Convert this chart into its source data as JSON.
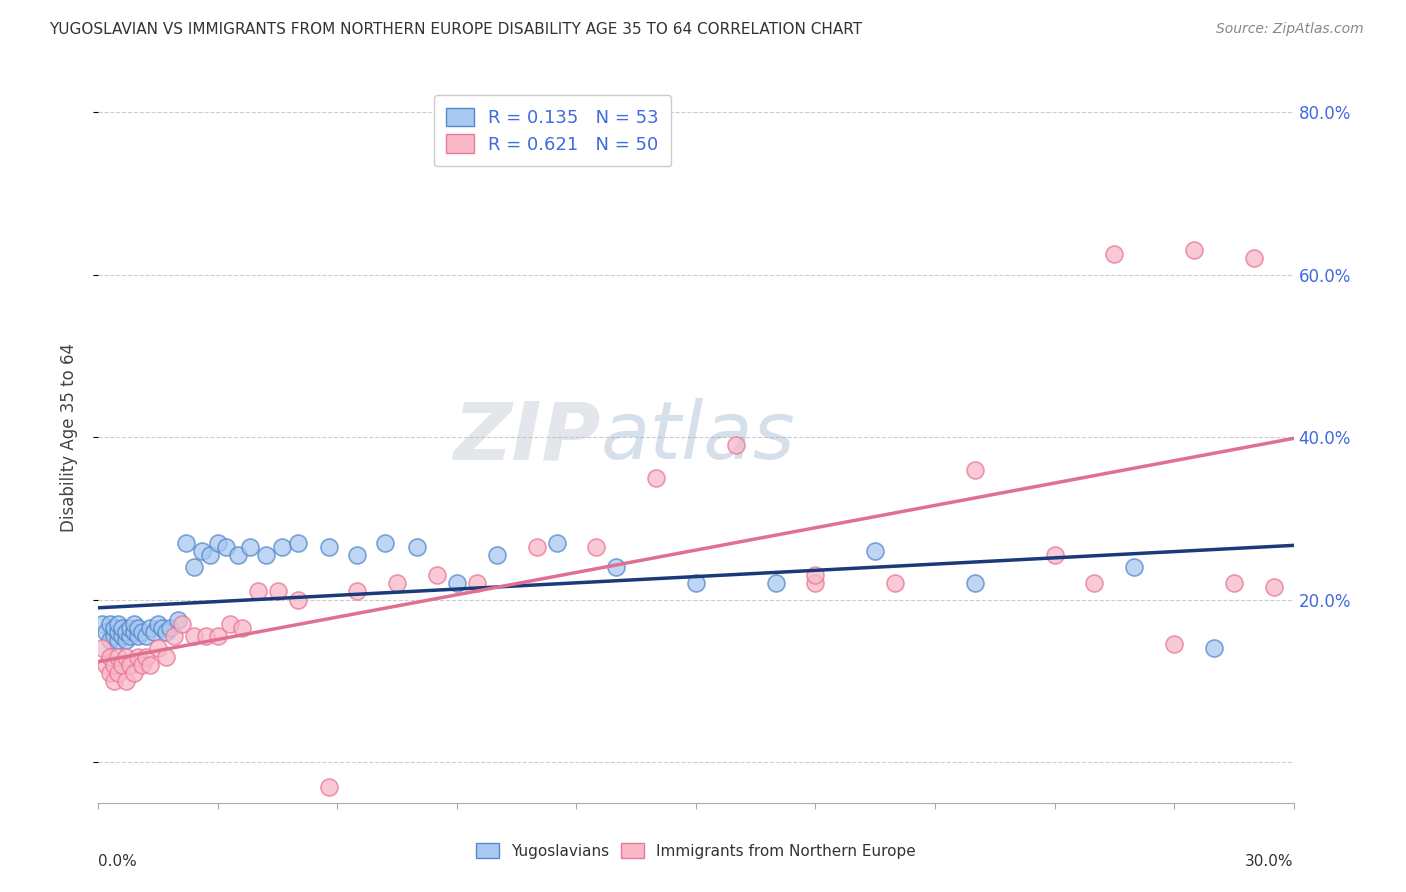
{
  "title": "YUGOSLAVIAN VS IMMIGRANTS FROM NORTHERN EUROPE DISABILITY AGE 35 TO 64 CORRELATION CHART",
  "source": "Source: ZipAtlas.com",
  "ylabel": "Disability Age 35 to 64",
  "xmin": 0.0,
  "xmax": 0.3,
  "ymin": -0.05,
  "ymax": 0.85,
  "ytick_vals": [
    0.0,
    0.2,
    0.4,
    0.6,
    0.8
  ],
  "ytick_labels": [
    "",
    "20.0%",
    "40.0%",
    "60.0%",
    "80.0%"
  ],
  "r_blue": 0.135,
  "n_blue": 53,
  "r_pink": 0.621,
  "n_pink": 50,
  "blue_fill": "#A8C8F0",
  "blue_edge": "#5588CC",
  "pink_fill": "#F8B8C8",
  "pink_edge": "#E87898",
  "blue_line_color": "#1A3A7A",
  "pink_line_color": "#E07090",
  "blue_scatter_x": [
    0.001,
    0.002,
    0.003,
    0.003,
    0.004,
    0.004,
    0.005,
    0.005,
    0.005,
    0.006,
    0.006,
    0.007,
    0.007,
    0.008,
    0.008,
    0.009,
    0.009,
    0.01,
    0.01,
    0.011,
    0.012,
    0.013,
    0.014,
    0.015,
    0.016,
    0.017,
    0.018,
    0.02,
    0.022,
    0.024,
    0.026,
    0.028,
    0.03,
    0.032,
    0.035,
    0.038,
    0.042,
    0.046,
    0.05,
    0.058,
    0.065,
    0.072,
    0.08,
    0.09,
    0.1,
    0.115,
    0.13,
    0.15,
    0.17,
    0.195,
    0.22,
    0.26,
    0.28
  ],
  "blue_scatter_y": [
    0.17,
    0.16,
    0.15,
    0.17,
    0.155,
    0.165,
    0.15,
    0.16,
    0.17,
    0.155,
    0.165,
    0.15,
    0.16,
    0.155,
    0.165,
    0.16,
    0.17,
    0.155,
    0.165,
    0.16,
    0.155,
    0.165,
    0.16,
    0.17,
    0.165,
    0.16,
    0.165,
    0.175,
    0.27,
    0.24,
    0.26,
    0.255,
    0.27,
    0.265,
    0.255,
    0.265,
    0.255,
    0.265,
    0.27,
    0.265,
    0.255,
    0.27,
    0.265,
    0.22,
    0.255,
    0.27,
    0.24,
    0.22,
    0.22,
    0.26,
    0.22,
    0.24,
    0.14
  ],
  "pink_scatter_x": [
    0.001,
    0.002,
    0.003,
    0.003,
    0.004,
    0.004,
    0.005,
    0.005,
    0.006,
    0.007,
    0.007,
    0.008,
    0.009,
    0.01,
    0.011,
    0.012,
    0.013,
    0.015,
    0.017,
    0.019,
    0.021,
    0.024,
    0.027,
    0.03,
    0.033,
    0.036,
    0.04,
    0.045,
    0.05,
    0.058,
    0.065,
    0.075,
    0.085,
    0.095,
    0.11,
    0.125,
    0.14,
    0.16,
    0.18,
    0.2,
    0.22,
    0.24,
    0.255,
    0.27,
    0.285,
    0.295,
    0.25,
    0.275,
    0.18,
    0.29
  ],
  "pink_scatter_y": [
    0.14,
    0.12,
    0.11,
    0.13,
    0.1,
    0.12,
    0.11,
    0.13,
    0.12,
    0.1,
    0.13,
    0.12,
    0.11,
    0.13,
    0.12,
    0.13,
    0.12,
    0.14,
    0.13,
    0.155,
    0.17,
    0.155,
    0.155,
    0.155,
    0.17,
    0.165,
    0.21,
    0.21,
    0.2,
    -0.03,
    0.21,
    0.22,
    0.23,
    0.22,
    0.265,
    0.265,
    0.35,
    0.39,
    0.22,
    0.22,
    0.36,
    0.255,
    0.625,
    0.145,
    0.22,
    0.215,
    0.22,
    0.63,
    0.23,
    0.62
  ]
}
